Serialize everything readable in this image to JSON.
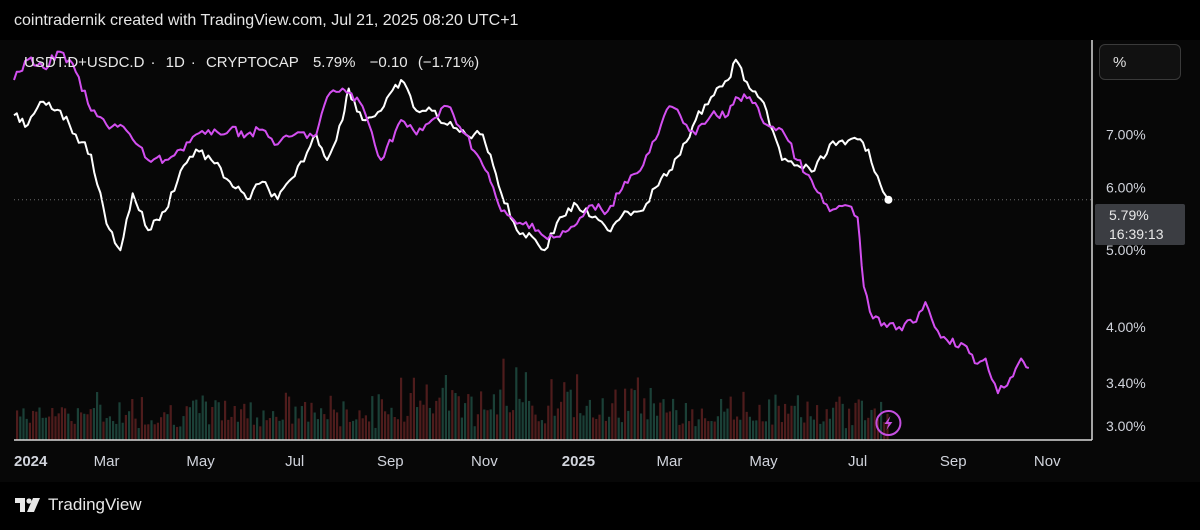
{
  "header": {
    "attribution": "cointradernik created with TradingView.com, Jul 21, 2025 08:20 UTC+1"
  },
  "legend": {
    "symbol": "USDT.D+USDC.D",
    "interval": "1D",
    "exchange": "CRYPTOCAP",
    "last": "5.79%",
    "change": "−0.10",
    "change_pct": "(−1.71%)"
  },
  "scale_button": {
    "label": "%"
  },
  "price_tag": {
    "price": "5.79%",
    "countdown": "16:39:13"
  },
  "footer": {
    "brand": "TradingView"
  },
  "colors": {
    "background": "#000000",
    "panel": "#070707",
    "main_series": "#ffffff",
    "overlay_series": "#d34ff0",
    "volume_up": "#1f4a3f",
    "volume_down": "#5a2020",
    "axis_text": "#d1d4dc"
  },
  "chart_data": {
    "type": "line",
    "x_range": [
      "2024-01-01",
      "2025-11-30"
    ],
    "y_scale": "log",
    "y_range": [
      2.88,
      9.0
    ],
    "y_ticks": [
      "7.00%",
      "6.00%",
      "5.00%",
      "4.00%",
      "3.40%",
      "3.00%"
    ],
    "x_ticks": [
      {
        "date": "2024-01-01",
        "label": "2024",
        "bold": true
      },
      {
        "date": "2024-03-01",
        "label": "Mar"
      },
      {
        "date": "2024-05-01",
        "label": "May"
      },
      {
        "date": "2024-07-01",
        "label": "Jul"
      },
      {
        "date": "2024-09-01",
        "label": "Sep"
      },
      {
        "date": "2024-11-01",
        "label": "Nov"
      },
      {
        "date": "2025-01-01",
        "label": "2025",
        "bold": true
      },
      {
        "date": "2025-03-01",
        "label": "Mar"
      },
      {
        "date": "2025-05-01",
        "label": "May"
      },
      {
        "date": "2025-07-01",
        "label": "Jul"
      },
      {
        "date": "2025-09-01",
        "label": "Sep"
      },
      {
        "date": "2025-11-01",
        "label": "Nov"
      }
    ],
    "series": [
      {
        "color": "#ffffff",
        "points": [
          [
            "2024-01-01",
            7.4
          ],
          [
            "2024-01-10",
            7.2
          ],
          [
            "2024-01-20",
            7.7
          ],
          [
            "2024-01-31",
            7.5
          ],
          [
            "2024-02-10",
            7.0
          ],
          [
            "2024-02-20",
            6.6
          ],
          [
            "2024-03-01",
            5.4
          ],
          [
            "2024-03-10",
            5.0
          ],
          [
            "2024-03-18",
            5.9
          ],
          [
            "2024-03-28",
            5.3
          ],
          [
            "2024-04-08",
            5.6
          ],
          [
            "2024-04-18",
            6.3
          ],
          [
            "2024-04-28",
            6.7
          ],
          [
            "2024-05-08",
            6.5
          ],
          [
            "2024-05-20",
            6.1
          ],
          [
            "2024-05-31",
            5.8
          ],
          [
            "2024-06-10",
            6.1
          ],
          [
            "2024-06-20",
            5.8
          ],
          [
            "2024-07-01",
            6.2
          ],
          [
            "2024-07-15",
            7.0
          ],
          [
            "2024-07-22",
            6.5
          ],
          [
            "2024-08-01",
            7.3
          ],
          [
            "2024-08-05",
            8.0
          ],
          [
            "2024-08-14",
            7.3
          ],
          [
            "2024-08-26",
            7.5
          ],
          [
            "2024-09-08",
            8.2
          ],
          [
            "2024-09-18",
            7.5
          ],
          [
            "2024-09-28",
            7.5
          ],
          [
            "2024-10-08",
            7.2
          ],
          [
            "2024-10-20",
            7.0
          ],
          [
            "2024-10-31",
            7.0
          ],
          [
            "2024-11-05",
            6.6
          ],
          [
            "2024-11-12",
            5.9
          ],
          [
            "2024-11-22",
            5.3
          ],
          [
            "2024-12-02",
            5.2
          ],
          [
            "2024-12-10",
            5.0
          ],
          [
            "2024-12-20",
            5.5
          ],
          [
            "2024-12-31",
            5.7
          ],
          [
            "2025-01-10",
            5.5
          ],
          [
            "2025-01-20",
            5.3
          ],
          [
            "2025-01-31",
            5.6
          ],
          [
            "2025-02-10",
            5.6
          ],
          [
            "2025-02-20",
            6.0
          ],
          [
            "2025-03-01",
            6.3
          ],
          [
            "2025-03-08",
            6.6
          ],
          [
            "2025-03-18",
            7.3
          ],
          [
            "2025-03-28",
            7.8
          ],
          [
            "2025-04-08",
            8.2
          ],
          [
            "2025-04-13",
            8.7
          ],
          [
            "2025-04-22",
            8.0
          ],
          [
            "2025-05-03",
            7.5
          ],
          [
            "2025-05-13",
            6.5
          ],
          [
            "2025-05-23",
            6.4
          ],
          [
            "2025-06-03",
            6.3
          ],
          [
            "2025-06-13",
            6.8
          ],
          [
            "2025-06-23",
            6.8
          ],
          [
            "2025-07-01",
            6.9
          ],
          [
            "2025-07-08",
            6.7
          ],
          [
            "2025-07-14",
            6.2
          ],
          [
            "2025-07-21",
            5.79
          ]
        ]
      },
      {
        "color": "#d34ff0",
        "points": [
          [
            "2024-01-01",
            8.2
          ],
          [
            "2024-01-10",
            8.7
          ],
          [
            "2024-01-20",
            8.5
          ],
          [
            "2024-01-31",
            8.9
          ],
          [
            "2024-02-10",
            8.4
          ],
          [
            "2024-02-20",
            7.5
          ],
          [
            "2024-03-01",
            7.2
          ],
          [
            "2024-03-10",
            7.2
          ],
          [
            "2024-03-18",
            6.9
          ],
          [
            "2024-03-28",
            6.5
          ],
          [
            "2024-04-08",
            6.5
          ],
          [
            "2024-04-18",
            6.7
          ],
          [
            "2024-04-28",
            7.0
          ],
          [
            "2024-05-08",
            7.0
          ],
          [
            "2024-05-20",
            7.1
          ],
          [
            "2024-05-31",
            7.0
          ],
          [
            "2024-06-10",
            7.1
          ],
          [
            "2024-06-20",
            6.8
          ],
          [
            "2024-07-01",
            7.0
          ],
          [
            "2024-07-15",
            7.0
          ],
          [
            "2024-07-22",
            7.8
          ],
          [
            "2024-08-01",
            8.0
          ],
          [
            "2024-08-05",
            7.9
          ],
          [
            "2024-08-14",
            7.6
          ],
          [
            "2024-08-26",
            6.5
          ],
          [
            "2024-09-08",
            7.3
          ],
          [
            "2024-09-18",
            7.0
          ],
          [
            "2024-09-28",
            7.3
          ],
          [
            "2024-10-08",
            7.6
          ],
          [
            "2024-10-20",
            7.0
          ],
          [
            "2024-10-31",
            6.4
          ],
          [
            "2024-11-05",
            6.1
          ],
          [
            "2024-11-12",
            5.6
          ],
          [
            "2024-11-22",
            5.4
          ],
          [
            "2024-12-02",
            5.4
          ],
          [
            "2024-12-10",
            5.2
          ],
          [
            "2024-12-20",
            5.2
          ],
          [
            "2024-12-31",
            5.4
          ],
          [
            "2025-01-10",
            5.7
          ],
          [
            "2025-01-20",
            5.6
          ],
          [
            "2025-01-31",
            6.1
          ],
          [
            "2025-02-10",
            6.3
          ],
          [
            "2025-02-20",
            6.9
          ],
          [
            "2025-03-01",
            7.6
          ],
          [
            "2025-03-08",
            7.4
          ],
          [
            "2025-03-18",
            7.0
          ],
          [
            "2025-03-28",
            7.4
          ],
          [
            "2025-04-08",
            7.4
          ],
          [
            "2025-04-13",
            7.8
          ],
          [
            "2025-04-22",
            7.8
          ],
          [
            "2025-05-03",
            7.2
          ],
          [
            "2025-05-13",
            7.1
          ],
          [
            "2025-05-23",
            6.5
          ],
          [
            "2025-06-03",
            6.0
          ],
          [
            "2025-06-13",
            5.6
          ],
          [
            "2025-06-23",
            5.7
          ],
          [
            "2025-07-01",
            5.5
          ],
          [
            "2025-07-05",
            4.5
          ],
          [
            "2025-07-11",
            4.1
          ],
          [
            "2025-07-20",
            4.0
          ],
          [
            "2025-07-28",
            4.0
          ],
          [
            "2025-08-06",
            4.05
          ],
          [
            "2025-08-14",
            4.3
          ],
          [
            "2025-08-20",
            4.0
          ],
          [
            "2025-08-28",
            3.85
          ],
          [
            "2025-09-08",
            3.8
          ],
          [
            "2025-09-15",
            3.6
          ],
          [
            "2025-09-22",
            3.65
          ],
          [
            "2025-09-30",
            3.3
          ],
          [
            "2025-10-08",
            3.45
          ],
          [
            "2025-10-15",
            3.65
          ],
          [
            "2025-10-20",
            3.55
          ]
        ]
      }
    ],
    "last_value": 5.79
  }
}
